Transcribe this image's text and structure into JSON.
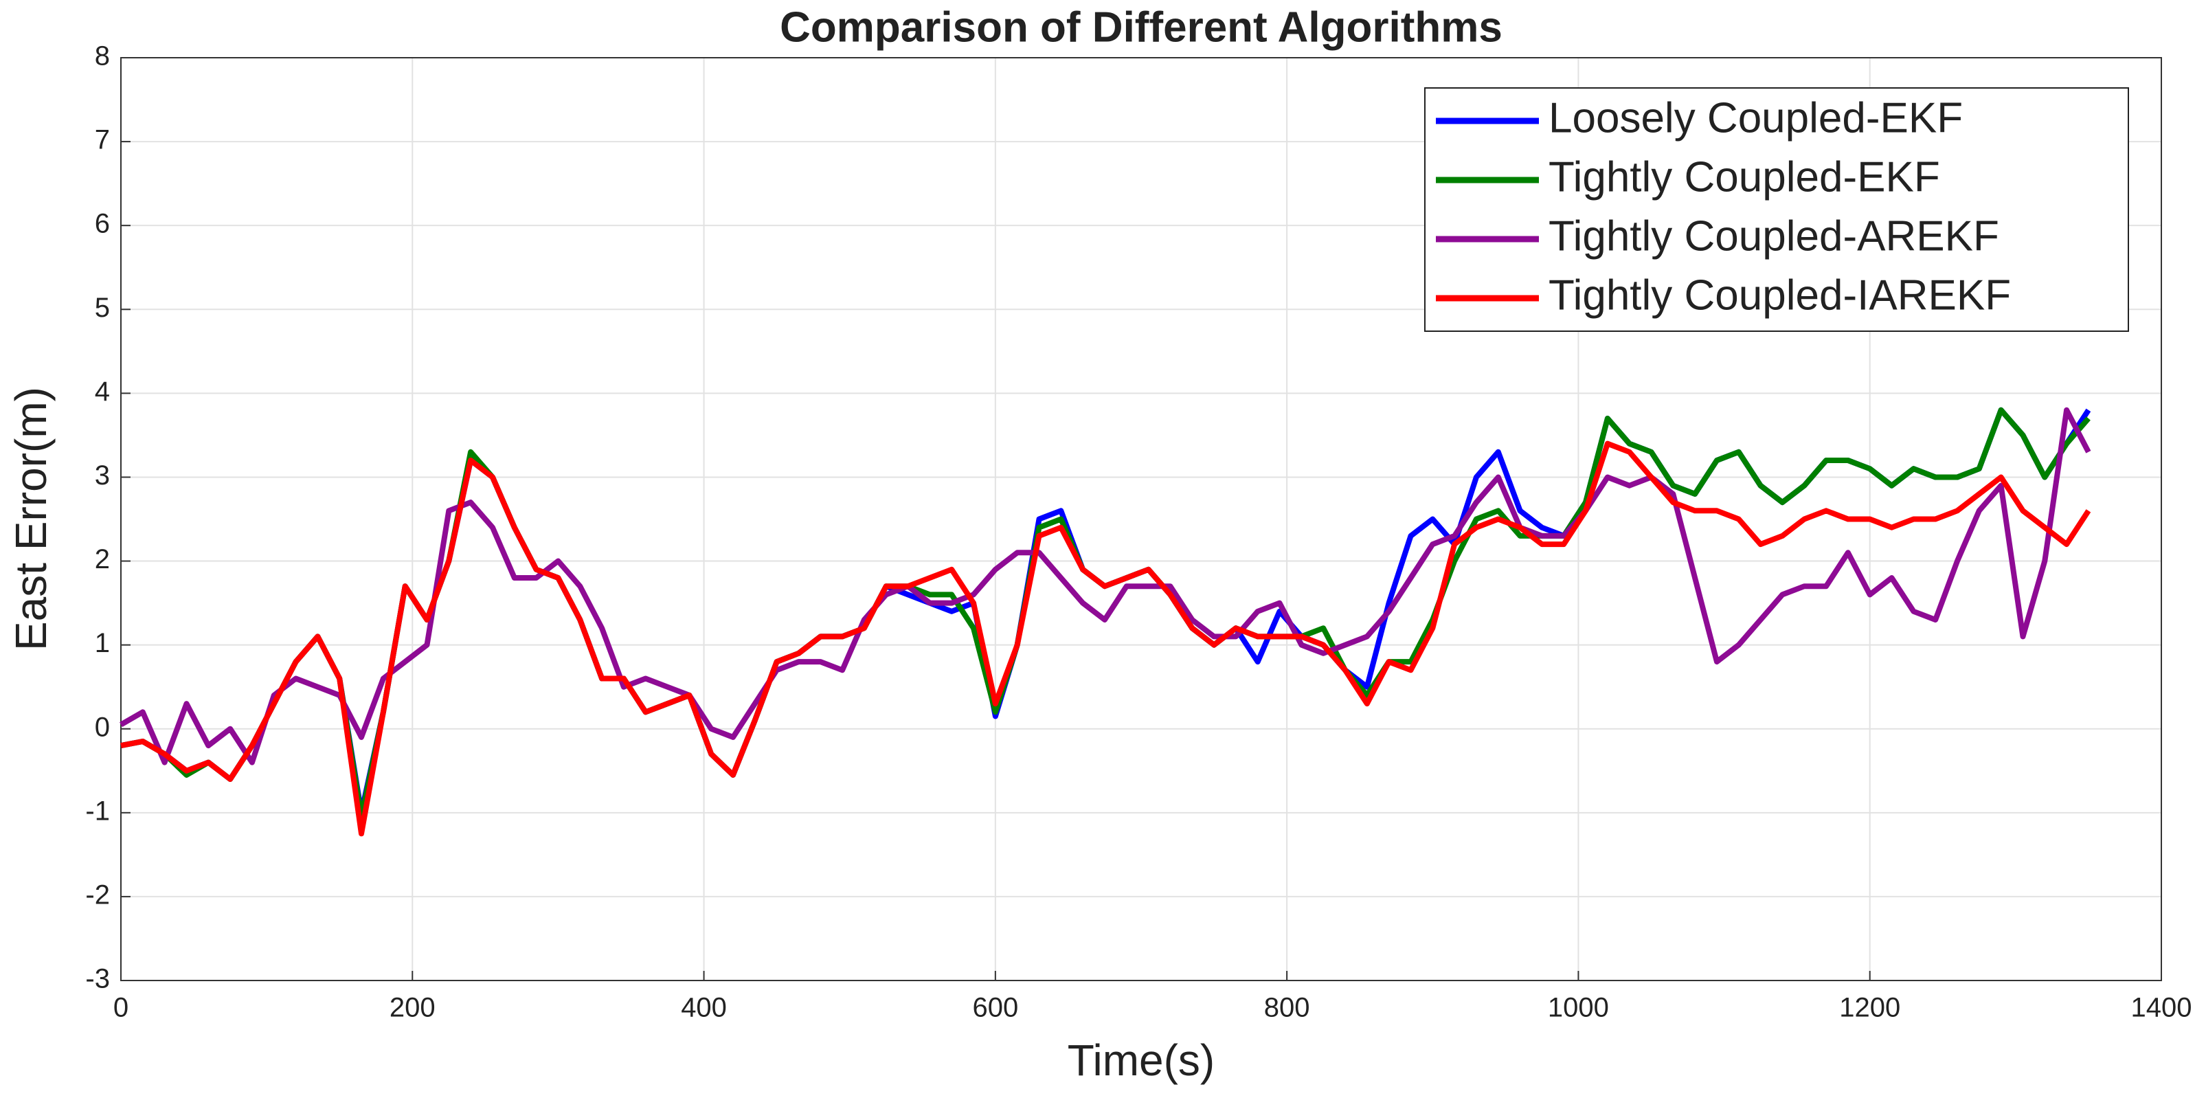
{
  "chart_data": {
    "type": "line",
    "title": "Comparison of Different Algorithms",
    "x_label": "Time(s)",
    "y_label": "East Error(m)",
    "x": [
      0,
      15,
      30,
      45,
      60,
      75,
      90,
      105,
      120,
      135,
      150,
      165,
      180,
      195,
      210,
      225,
      240,
      255,
      270,
      285,
      300,
      315,
      330,
      345,
      360,
      375,
      390,
      405,
      420,
      435,
      450,
      465,
      480,
      495,
      510,
      525,
      540,
      555,
      570,
      585,
      600,
      615,
      630,
      645,
      660,
      675,
      690,
      705,
      720,
      735,
      750,
      765,
      780,
      795,
      810,
      825,
      840,
      855,
      870,
      885,
      900,
      915,
      930,
      945,
      960,
      975,
      990,
      1005,
      1020,
      1035,
      1050,
      1065,
      1080,
      1095,
      1110,
      1125,
      1140,
      1155,
      1170,
      1185,
      1200,
      1215,
      1230,
      1245,
      1260,
      1275,
      1290,
      1305,
      1320,
      1335,
      1350
    ],
    "series": [
      {
        "name": "Loosely Coupled-EKF",
        "color": "#0000ff",
        "values": [
          -0.2,
          -0.15,
          -0.3,
          -0.5,
          -0.4,
          -0.6,
          -0.2,
          0.3,
          0.8,
          1.1,
          0.6,
          -1.0,
          0.2,
          1.7,
          1.3,
          2.0,
          3.2,
          3.0,
          2.4,
          1.9,
          1.8,
          1.3,
          0.6,
          0.6,
          0.2,
          0.3,
          0.4,
          -0.3,
          -0.55,
          0.1,
          0.8,
          0.9,
          1.1,
          1.1,
          1.2,
          1.7,
          1.6,
          1.5,
          1.4,
          1.5,
          0.15,
          1.0,
          2.5,
          2.6,
          1.9,
          1.7,
          1.8,
          1.9,
          1.6,
          1.2,
          1.0,
          1.2,
          0.8,
          1.4,
          1.1,
          1.0,
          0.7,
          0.5,
          1.5,
          2.3,
          2.5,
          2.2,
          3.0,
          3.3,
          2.6,
          2.4,
          2.3,
          2.7,
          3.7,
          3.4,
          3.3,
          2.9,
          2.8,
          3.2,
          3.3,
          2.9,
          2.7,
          2.9,
          3.2,
          3.2,
          3.1,
          2.9,
          3.1,
          3.0,
          3.0,
          3.1,
          3.8,
          3.5,
          3.0,
          3.4,
          3.8
        ]
      },
      {
        "name": "Tightly Coupled-EKF",
        "color": "#008000",
        "values": [
          -0.2,
          -0.15,
          -0.3,
          -0.55,
          -0.4,
          -0.6,
          -0.2,
          0.3,
          0.8,
          1.1,
          0.6,
          -1.05,
          0.2,
          1.7,
          1.3,
          2.0,
          3.3,
          3.0,
          2.4,
          1.9,
          1.8,
          1.3,
          0.6,
          0.6,
          0.2,
          0.3,
          0.4,
          -0.3,
          -0.55,
          0.1,
          0.8,
          0.9,
          1.1,
          1.1,
          1.2,
          1.7,
          1.7,
          1.6,
          1.6,
          1.2,
          0.2,
          1.0,
          2.4,
          2.5,
          1.9,
          1.7,
          1.8,
          1.9,
          1.6,
          1.2,
          1.0,
          1.2,
          1.1,
          1.1,
          1.1,
          1.2,
          0.7,
          0.4,
          0.8,
          0.8,
          1.3,
          2.0,
          2.5,
          2.6,
          2.3,
          2.3,
          2.3,
          2.7,
          3.7,
          3.4,
          3.3,
          2.9,
          2.8,
          3.2,
          3.3,
          2.9,
          2.7,
          2.9,
          3.2,
          3.2,
          3.1,
          2.9,
          3.1,
          3.0,
          3.0,
          3.1,
          3.8,
          3.5,
          3.0,
          3.4,
          3.7
        ]
      },
      {
        "name": "Tightly Coupled-AREKF",
        "color": "#8e0b94",
        "values": [
          0.05,
          0.2,
          -0.4,
          0.3,
          -0.2,
          0.0,
          -0.4,
          0.4,
          0.6,
          0.5,
          0.4,
          -0.1,
          0.6,
          0.8,
          1.0,
          2.6,
          2.7,
          2.4,
          1.8,
          1.8,
          2.0,
          1.7,
          1.2,
          0.5,
          0.6,
          0.5,
          0.4,
          0.0,
          -0.1,
          0.3,
          0.7,
          0.8,
          0.8,
          0.7,
          1.3,
          1.6,
          1.7,
          1.5,
          1.5,
          1.6,
          1.9,
          2.1,
          2.1,
          1.8,
          1.5,
          1.3,
          1.7,
          1.7,
          1.7,
          1.3,
          1.1,
          1.1,
          1.4,
          1.5,
          1.0,
          0.9,
          1.0,
          1.1,
          1.4,
          1.8,
          2.2,
          2.3,
          2.7,
          3.0,
          2.4,
          2.3,
          2.3,
          2.6,
          3.0,
          2.9,
          3.0,
          2.8,
          1.8,
          0.8,
          1.0,
          1.3,
          1.6,
          1.7,
          1.7,
          2.1,
          1.6,
          1.8,
          1.4,
          1.3,
          2.0,
          2.6,
          2.9,
          1.1,
          2.0,
          3.8,
          3.3
        ]
      },
      {
        "name": "Tightly Coupled-IAREKF",
        "color": "#ff0000",
        "values": [
          -0.2,
          -0.15,
          -0.3,
          -0.5,
          -0.4,
          -0.6,
          -0.2,
          0.3,
          0.8,
          1.1,
          0.6,
          -1.25,
          0.2,
          1.7,
          1.3,
          2.0,
          3.2,
          3.0,
          2.4,
          1.9,
          1.8,
          1.3,
          0.6,
          0.6,
          0.2,
          0.3,
          0.4,
          -0.3,
          -0.55,
          0.1,
          0.8,
          0.9,
          1.1,
          1.1,
          1.2,
          1.7,
          1.7,
          1.8,
          1.9,
          1.5,
          0.3,
          1.0,
          2.3,
          2.4,
          1.9,
          1.7,
          1.8,
          1.9,
          1.6,
          1.2,
          1.0,
          1.2,
          1.1,
          1.1,
          1.1,
          1.0,
          0.7,
          0.3,
          0.8,
          0.7,
          1.2,
          2.2,
          2.4,
          2.5,
          2.4,
          2.2,
          2.2,
          2.6,
          3.4,
          3.3,
          3.0,
          2.7,
          2.6,
          2.6,
          2.5,
          2.2,
          2.3,
          2.5,
          2.6,
          2.5,
          2.5,
          2.4,
          2.5,
          2.5,
          2.6,
          2.8,
          3.0,
          2.6,
          2.4,
          2.2,
          2.6
        ]
      }
    ],
    "xlim": [
      0,
      1400
    ],
    "xticks": [
      0,
      200,
      400,
      600,
      800,
      1000,
      1200,
      1400
    ],
    "ylim": [
      -3,
      8
    ],
    "yticks": [
      -3,
      -2,
      -1,
      0,
      1,
      2,
      3,
      4,
      5,
      6,
      7,
      8
    ],
    "grid": true,
    "legend": "northeast"
  }
}
